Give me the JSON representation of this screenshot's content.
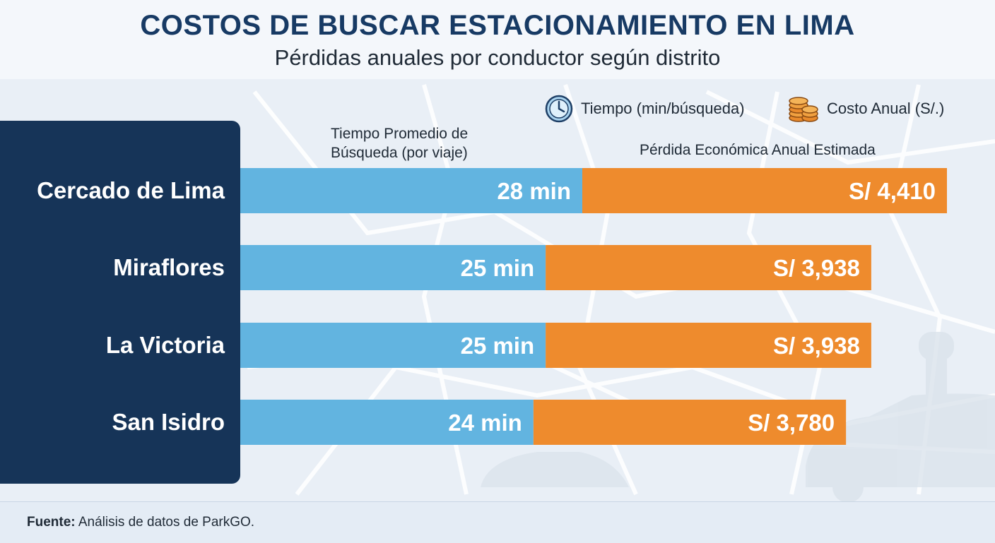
{
  "header": {
    "title": "COSTOS DE BUSCAR ESTACIONAMIENTO EN LIMA",
    "subtitle": "Pérdidas anuales por conductor según distrito"
  },
  "legend": {
    "time": {
      "label": "Tiempo (min/búsqueda)",
      "icon": "clock-icon",
      "color": "#62b4e0"
    },
    "cost": {
      "label": "Costo Anual (S/.)",
      "icon": "coins-icon",
      "color": "#ee8b2d"
    }
  },
  "column_labels": {
    "time_line1": "Tiempo Promedio de",
    "time_line2": "Búsqueda (por viaje)",
    "cost": "Pérdida Económica Anual Estimada"
  },
  "chart_data": {
    "type": "bar",
    "orientation": "horizontal",
    "stacked": true,
    "categories": [
      "Cercado de Lima",
      "Miraflores",
      "La Victoria",
      "San Isidro"
    ],
    "series": [
      {
        "name": "Tiempo (min/búsqueda)",
        "values": [
          28,
          25,
          25,
          24
        ],
        "labels": [
          "28 min",
          "25 min",
          "25 min",
          "24 min"
        ],
        "color": "#62b4e0"
      },
      {
        "name": "Costo Anual (S/.)",
        "values": [
          4410,
          3938,
          3938,
          3780
        ],
        "labels": [
          "S/ 4,410",
          "S/ 3,938",
          "S/ 3,938",
          "S/ 3,780"
        ],
        "color": "#ee8b2d"
      }
    ]
  },
  "footer": {
    "source_label": "Fuente:",
    "source_text": "Análisis de datos de ParkGO."
  }
}
